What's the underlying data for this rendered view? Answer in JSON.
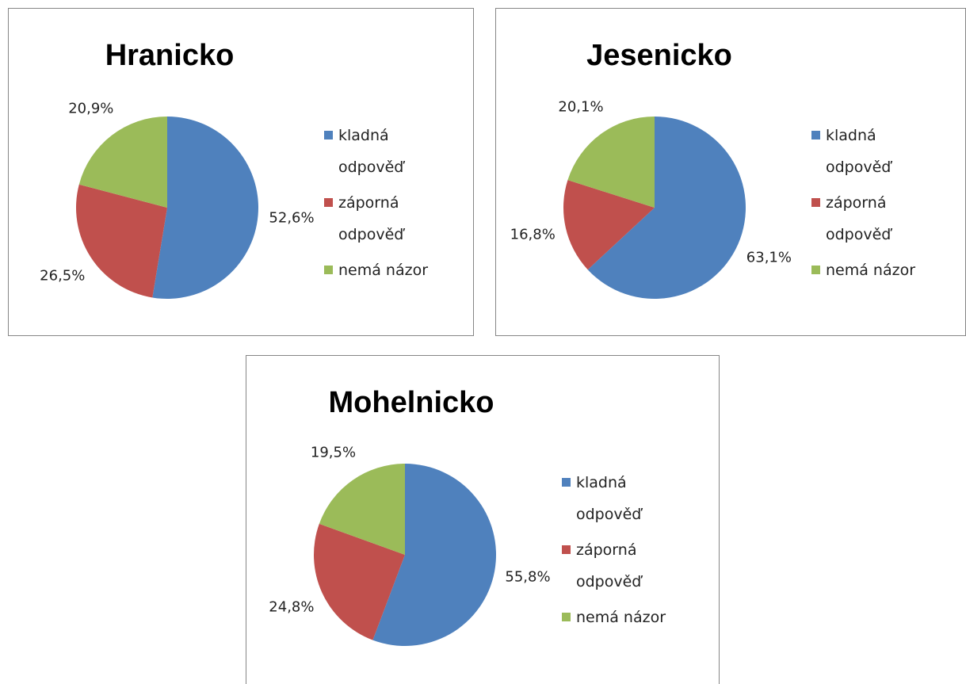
{
  "chart_data": [
    {
      "type": "pie",
      "title": "Hranicko",
      "categories": [
        "kladná odpověď",
        "záporná odpověď",
        "nemá názor"
      ],
      "values": [
        52.6,
        26.5,
        20.9
      ],
      "value_labels": [
        "52,6%",
        "26,5%",
        "20,9%"
      ],
      "colors": [
        "#4f81bd",
        "#c0504d",
        "#9bbb59"
      ],
      "legend": "right"
    },
    {
      "type": "pie",
      "title": "Jesenicko",
      "categories": [
        "kladná odpověď",
        "záporná odpověď",
        "nemá názor"
      ],
      "values": [
        63.1,
        16.8,
        20.1
      ],
      "value_labels": [
        "63,1%",
        "16,8%",
        "20,1%"
      ],
      "colors": [
        "#4f81bd",
        "#c0504d",
        "#9bbb59"
      ],
      "legend": "right"
    },
    {
      "type": "pie",
      "title": "Mohelnicko",
      "categories": [
        "kladná odpověď",
        "záporná odpověď",
        "nemá názor"
      ],
      "values": [
        55.8,
        24.8,
        19.5
      ],
      "value_labels": [
        "55,8%",
        "24,8%",
        "19,5%"
      ],
      "colors": [
        "#4f81bd",
        "#c0504d",
        "#9bbb59"
      ],
      "legend": "right"
    }
  ]
}
